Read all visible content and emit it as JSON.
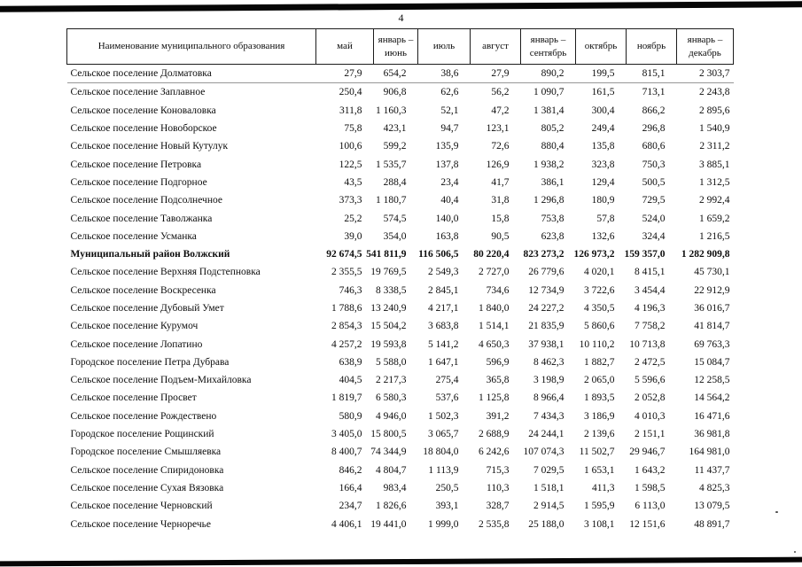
{
  "page": {
    "number": "4"
  },
  "table": {
    "name_header": "Наименование муниципального образования",
    "columns": [
      "май",
      "январь –\nиюнь",
      "июль",
      "август",
      "январь –\nсентябрь",
      "октябрь",
      "ноябрь",
      "январь –\nдекабрь"
    ],
    "rows": [
      {
        "name": "Сельское поселение Долматовка",
        "bold": false,
        "values": [
          "27,9",
          "654,2",
          "38,6",
          "27,9",
          "890,2",
          "199,5",
          "815,1",
          "2 303,7"
        ]
      },
      {
        "name": "Сельское поселение Заплавное",
        "bold": false,
        "values": [
          "250,4",
          "906,8",
          "62,6",
          "56,2",
          "1 090,7",
          "161,5",
          "713,1",
          "2 243,8"
        ]
      },
      {
        "name": "Сельское поселение Коноваловка",
        "bold": false,
        "values": [
          "311,8",
          "1 160,3",
          "52,1",
          "47,2",
          "1 381,4",
          "300,4",
          "866,2",
          "2 895,6"
        ]
      },
      {
        "name": "Сельское поселение Новоборское",
        "bold": false,
        "values": [
          "75,8",
          "423,1",
          "94,7",
          "123,1",
          "805,2",
          "249,4",
          "296,8",
          "1 540,9"
        ]
      },
      {
        "name": "Сельское поселение Новый Кутулук",
        "bold": false,
        "values": [
          "100,6",
          "599,2",
          "135,9",
          "72,6",
          "880,4",
          "135,8",
          "680,6",
          "2 311,2"
        ]
      },
      {
        "name": "Сельское поселение Петровка",
        "bold": false,
        "values": [
          "122,5",
          "1 535,7",
          "137,8",
          "126,9",
          "1 938,2",
          "323,8",
          "750,3",
          "3 885,1"
        ]
      },
      {
        "name": "Сельское поселение Подгорное",
        "bold": false,
        "values": [
          "43,5",
          "288,4",
          "23,4",
          "41,7",
          "386,1",
          "129,4",
          "500,5",
          "1 312,5"
        ]
      },
      {
        "name": "Сельское поселение Подсолнечное",
        "bold": false,
        "values": [
          "373,3",
          "1 180,7",
          "40,4",
          "31,8",
          "1 296,8",
          "180,9",
          "729,5",
          "2 992,4"
        ]
      },
      {
        "name": "Сельское поселение Таволжанка",
        "bold": false,
        "values": [
          "25,2",
          "574,5",
          "140,0",
          "15,8",
          "753,8",
          "57,8",
          "524,0",
          "1 659,2"
        ]
      },
      {
        "name": "Сельское поселение Усманка",
        "bold": false,
        "values": [
          "39,0",
          "354,0",
          "163,8",
          "90,5",
          "623,8",
          "132,6",
          "324,4",
          "1 216,5"
        ]
      },
      {
        "name": "Муниципальный район Волжский",
        "bold": true,
        "values": [
          "92 674,5",
          "541 811,9",
          "116 506,5",
          "80 220,4",
          "823 273,2",
          "126 973,2",
          "159 357,0",
          "1 282 909,8"
        ]
      },
      {
        "name": "Сельское поселение Верхняя Подстепновка",
        "bold": false,
        "values": [
          "2 355,5",
          "19 769,5",
          "2 549,3",
          "2 727,0",
          "26 779,6",
          "4 020,1",
          "8 415,1",
          "45 730,1"
        ]
      },
      {
        "name": "Сельское поселение Воскресенка",
        "bold": false,
        "values": [
          "746,3",
          "8 338,5",
          "2 845,1",
          "734,6",
          "12 734,9",
          "3 722,6",
          "3 454,4",
          "22 912,9"
        ]
      },
      {
        "name": "Сельское поселение Дубовый Умет",
        "bold": false,
        "values": [
          "1 788,6",
          "13 240,9",
          "4 217,1",
          "1 840,0",
          "24 227,2",
          "4 350,5",
          "4 196,3",
          "36 016,7"
        ]
      },
      {
        "name": "Сельское поселение Курумоч",
        "bold": false,
        "values": [
          "2 854,3",
          "15 504,2",
          "3 683,8",
          "1 514,1",
          "21 835,9",
          "5 860,6",
          "7 758,2",
          "41 814,7"
        ]
      },
      {
        "name": "Сельское поселение Лопатино",
        "bold": false,
        "values": [
          "4 257,2",
          "19 593,8",
          "5 141,2",
          "4 650,3",
          "37 938,1",
          "10 110,2",
          "10 713,8",
          "69 763,3"
        ]
      },
      {
        "name": "Городское поселение Петра Дубрава",
        "bold": false,
        "values": [
          "638,9",
          "5 588,0",
          "1 647,1",
          "596,9",
          "8 462,3",
          "1 882,7",
          "2 472,5",
          "15 084,7"
        ]
      },
      {
        "name": "Сельское поселение Подъем-Михайловка",
        "bold": false,
        "values": [
          "404,5",
          "2 217,3",
          "275,4",
          "365,8",
          "3 198,9",
          "2 065,0",
          "5 596,6",
          "12 258,5"
        ]
      },
      {
        "name": "Сельское поселение Просвет",
        "bold": false,
        "values": [
          "1 819,7",
          "6 580,3",
          "537,6",
          "1 125,8",
          "8 966,4",
          "1 893,5",
          "2 052,8",
          "14 564,2"
        ]
      },
      {
        "name": "Сельское поселение Рождествено",
        "bold": false,
        "values": [
          "580,9",
          "4 946,0",
          "1 502,3",
          "391,2",
          "7 434,3",
          "3 186,9",
          "4 010,3",
          "16 471,6"
        ]
      },
      {
        "name": "Городское поселение Рощинский",
        "bold": false,
        "values": [
          "3 405,0",
          "15 800,5",
          "3 065,7",
          "2 688,9",
          "24 244,1",
          "2 139,6",
          "2 151,1",
          "36 981,8"
        ]
      },
      {
        "name": "Городское поселение Смышляевка",
        "bold": false,
        "values": [
          "8 400,7",
          "74 344,9",
          "18 804,0",
          "6 242,6",
          "107 074,3",
          "11 502,7",
          "29 946,7",
          "164 981,0"
        ]
      },
      {
        "name": "Сельское поселение Спиридоновка",
        "bold": false,
        "values": [
          "846,2",
          "4 804,7",
          "1 113,9",
          "715,3",
          "7 029,5",
          "1 653,1",
          "1 643,2",
          "11 437,7"
        ]
      },
      {
        "name": "Сельское поселение Сухая Вязовка",
        "bold": false,
        "values": [
          "166,4",
          "983,4",
          "250,5",
          "110,3",
          "1 518,1",
          "411,3",
          "1 598,5",
          "4 825,3"
        ]
      },
      {
        "name": "Сельское поселение Черновский",
        "bold": false,
        "values": [
          "234,7",
          "1 826,6",
          "393,1",
          "328,7",
          "2 914,5",
          "1 595,9",
          "6 113,0",
          "13 079,5"
        ]
      },
      {
        "name": "Сельское поселение Черноречье",
        "bold": false,
        "values": [
          "4 406,1",
          "19 441,0",
          "1 999,0",
          "2 535,8",
          "25 188,0",
          "3 108,1",
          "12 151,6",
          "48 891,7"
        ]
      }
    ]
  }
}
